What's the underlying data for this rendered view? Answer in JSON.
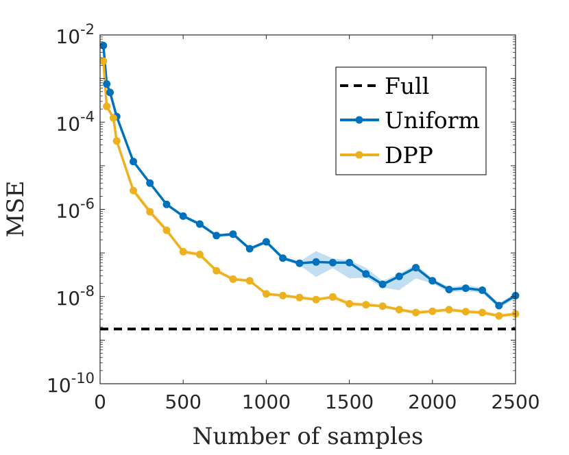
{
  "chart_data": {
    "type": "line",
    "title": "",
    "xlabel": "Number of samples",
    "ylabel": "MSE",
    "xlim": [
      0,
      2500
    ],
    "ylim_log10": [
      -10,
      -2
    ],
    "yscale": "log",
    "grid": false,
    "legend_position": "top-right",
    "x_ticks": [
      {
        "value": 0,
        "label": "0"
      },
      {
        "value": 500,
        "label": "500"
      },
      {
        "value": 1000,
        "label": "1000"
      },
      {
        "value": 1500,
        "label": "1500"
      },
      {
        "value": 2000,
        "label": "2000"
      },
      {
        "value": 2500,
        "label": "2500"
      }
    ],
    "y_ticks": [
      {
        "exp": -2,
        "base": "10",
        "sup": "-2"
      },
      {
        "exp": -4,
        "base": "10",
        "sup": "-4"
      },
      {
        "exp": -6,
        "base": "10",
        "sup": "-6"
      },
      {
        "exp": -8,
        "base": "10",
        "sup": "-8"
      },
      {
        "exp": -10,
        "base": "10",
        "sup": "-10"
      }
    ],
    "reference_line": {
      "name": "Full",
      "value": 1.8e-09,
      "color": "#000000"
    },
    "series": [
      {
        "name": "Uniform",
        "color": "#0072BD",
        "band_color": "#8FC2E6",
        "x": [
          20,
          40,
          60,
          100,
          200,
          300,
          400,
          500,
          600,
          700,
          800,
          900,
          1000,
          1100,
          1200,
          1300,
          1400,
          1500,
          1600,
          1700,
          1800,
          1900,
          2000,
          2100,
          2200,
          2300,
          2400,
          2500
        ],
        "y": [
          0.0057,
          0.00075,
          0.00048,
          0.000135,
          1.25e-05,
          4e-06,
          1.3e-06,
          7e-07,
          4.6e-07,
          2.5e-07,
          2.7e-07,
          1.25e-07,
          1.8e-07,
          7.6e-08,
          5.8e-08,
          6.2e-08,
          6e-08,
          6e-08,
          3.3e-08,
          1.9e-08,
          2.9e-08,
          4.6e-08,
          2.3e-08,
          1.45e-08,
          1.55e-08,
          1.4e-08,
          6.2e-09,
          1.05e-08
        ],
        "lower": [
          0.0053,
          0.0007,
          0.00045,
          0.000125,
          1.15e-05,
          3.7e-06,
          1.2e-06,
          6.4e-07,
          4.2e-07,
          2.3e-07,
          2.45e-07,
          1.15e-07,
          1.6e-07,
          6.9e-08,
          5.2e-08,
          2.8e-08,
          4.5e-08,
          2.6e-08,
          2.7e-08,
          1.6e-08,
          1.4e-08,
          2.6e-08,
          2e-08,
          1.25e-08,
          1.35e-08,
          1.2e-08,
          5.4e-09,
          9e-09
        ],
        "upper": [
          0.0061,
          0.0008,
          0.00051,
          0.000145,
          1.35e-05,
          4.3e-06,
          1.4e-06,
          7.6e-07,
          5e-07,
          2.7e-07,
          3e-07,
          1.35e-07,
          2e-07,
          8.4e-08,
          6.4e-08,
          1.1e-07,
          7.5e-08,
          6.8e-08,
          4.6e-08,
          2.3e-08,
          3.3e-08,
          5.5e-08,
          2.6e-08,
          1.65e-08,
          1.8e-08,
          1.6e-08,
          7e-09,
          1.2e-08
        ]
      },
      {
        "name": "DPP",
        "color": "#EDB120",
        "band_color": "#F7DCA0",
        "x": [
          20,
          40,
          80,
          100,
          200,
          300,
          400,
          500,
          600,
          700,
          800,
          900,
          1000,
          1100,
          1200,
          1300,
          1400,
          1500,
          1600,
          1700,
          1800,
          1900,
          2000,
          2100,
          2200,
          2300,
          2400,
          2500
        ],
        "y": [
          0.0025,
          0.00023,
          0.000125,
          3.7e-05,
          2.7e-06,
          8.8e-07,
          3.3e-07,
          1.07e-07,
          9.2e-08,
          3.9e-08,
          2.5e-08,
          2.3e-08,
          1.15e-08,
          1.05e-08,
          9.5e-09,
          8.5e-09,
          9.8e-09,
          6.8e-09,
          6.5e-09,
          6e-09,
          5e-09,
          4.3e-09,
          4.6e-09,
          5e-09,
          4.5e-09,
          4.3e-09,
          3.6e-09,
          4e-09
        ],
        "lower": [
          0.0023,
          0.00021,
          0.000115,
          3.4e-05,
          2.3e-06,
          7.5e-07,
          2.9e-07,
          9.5e-08,
          8.2e-08,
          3.5e-08,
          2.3e-08,
          2.1e-08,
          1.05e-08,
          9.6e-09,
          8.7e-09,
          7.8e-09,
          8.8e-09,
          5.8e-09,
          5.9e-09,
          5.5e-09,
          4.6e-09,
          3.9e-09,
          4.2e-09,
          4.6e-09,
          4.1e-09,
          3.9e-09,
          3.3e-09,
          3.6e-09
        ],
        "upper": [
          0.0027,
          0.00025,
          0.000135,
          4e-05,
          3.2e-06,
          1.05e-06,
          3.8e-07,
          1.2e-07,
          1.03e-07,
          4.3e-08,
          2.8e-08,
          2.5e-08,
          1.25e-08,
          1.15e-08,
          1.04e-08,
          9.3e-09,
          1.08e-08,
          7.8e-09,
          7.2e-09,
          6.6e-09,
          5.5e-09,
          4.8e-09,
          5.1e-09,
          5.5e-09,
          5e-09,
          4.8e-09,
          4e-09,
          4.4e-09
        ]
      }
    ]
  }
}
